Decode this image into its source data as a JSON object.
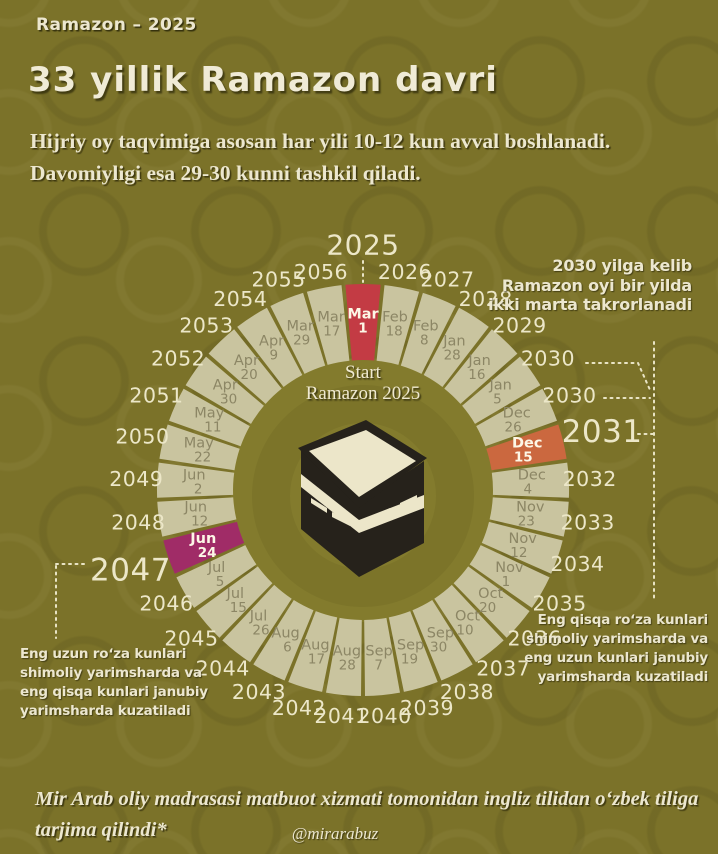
{
  "header": {
    "kicker": "Ramazon – 2025",
    "title": "33 yillik Ramazon davri",
    "subtitle_line1": "Hijriy oy taqvimiga asosan har yili 10-12 kun avval boshlanadi.",
    "subtitle_line2": "Davomiyligi esa 29-30 kunni tashkil qiladi."
  },
  "wheel": {
    "center_line1": "Start",
    "center_line2": "Ramazon 2025",
    "segments": [
      {
        "year": "2025",
        "month": "Mar",
        "day": "1",
        "highlight": "red",
        "emphasis": "top"
      },
      {
        "year": "2026",
        "month": "Feb",
        "day": "18"
      },
      {
        "year": "2027",
        "month": "Feb",
        "day": "8"
      },
      {
        "year": "2028",
        "month": "Jan",
        "day": "28"
      },
      {
        "year": "2029",
        "month": "Jan",
        "day": "16"
      },
      {
        "year": "2030",
        "month": "Jan",
        "day": "5"
      },
      {
        "year": "2030",
        "month": "Dec",
        "day": "26"
      },
      {
        "year": "2031",
        "month": "Dec",
        "day": "15",
        "highlight": "orange",
        "emphasis": "big"
      },
      {
        "year": "2032",
        "month": "Dec",
        "day": "4"
      },
      {
        "year": "2033",
        "month": "Nov",
        "day": "23"
      },
      {
        "year": "2034",
        "month": "Nov",
        "day": "12"
      },
      {
        "year": "2035",
        "month": "Nov",
        "day": "1"
      },
      {
        "year": "2036",
        "month": "Oct",
        "day": "20"
      },
      {
        "year": "2037",
        "month": "Oct",
        "day": "10"
      },
      {
        "year": "2038",
        "month": "Sep",
        "day": "30"
      },
      {
        "year": "2039",
        "month": "Sep",
        "day": "19"
      },
      {
        "year": "2040",
        "month": "Sep",
        "day": "7"
      },
      {
        "year": "2041",
        "month": "Aug",
        "day": "28"
      },
      {
        "year": "2042",
        "month": "Aug",
        "day": "17"
      },
      {
        "year": "2043",
        "month": "Aug",
        "day": "6"
      },
      {
        "year": "2044",
        "month": "Jul",
        "day": "26"
      },
      {
        "year": "2045",
        "month": "Jul",
        "day": "15"
      },
      {
        "year": "2046",
        "month": "Jul",
        "day": "5"
      },
      {
        "year": "2047",
        "month": "Jun",
        "day": "24",
        "highlight": "purple",
        "emphasis": "big"
      },
      {
        "year": "2048",
        "month": "Jun",
        "day": "12"
      },
      {
        "year": "2049",
        "month": "Jun",
        "day": "2"
      },
      {
        "year": "2050",
        "month": "May",
        "day": "22"
      },
      {
        "year": "2051",
        "month": "May",
        "day": "11"
      },
      {
        "year": "2052",
        "month": "Apr",
        "day": "30"
      },
      {
        "year": "2053",
        "month": "Apr",
        "day": "20"
      },
      {
        "year": "2054",
        "month": "Apr",
        "day": "9"
      },
      {
        "year": "2055",
        "month": "Mar",
        "day": "29"
      },
      {
        "year": "2056",
        "month": "Mar",
        "day": "17"
      }
    ]
  },
  "annotations": {
    "top_right": [
      "2030 yilga kelib",
      "Ramazon oyi bir yilda",
      "ikki marta takrorlanadi"
    ],
    "bottom_right": [
      "Eng qisqa roʻza kunlari",
      "shimoliy yarimsharda va",
      "eng uzun kunlari janubiy",
      "yarimsharda kuzatiladi"
    ],
    "bottom_left": [
      "Eng uzun roʻza kunlari",
      "shimoliy yarimsharda va",
      "eng qisqa kunlari janubiy",
      "yarimsharda kuzatiladi"
    ]
  },
  "footer": {
    "note_line1": "Mir Arab oliy madrasasi matbuot xizmati tomonidan ingliz tilidan oʻzbek tiliga",
    "note_line2": "tarjima qilindi*",
    "handle": "@mirarabuz"
  },
  "colors": {
    "background": "#7b7229",
    "ring": "#c9c49f",
    "inner_disc": "#837b2d",
    "highlight_red": "#c33b44",
    "highlight_orange": "#cb683f",
    "highlight_purple": "#a02c67",
    "year_text": "#ece7c8",
    "date_text": "#8c8665",
    "highlight_text": "#fdf7e6",
    "dotted": "#e9e4c5",
    "cream_text": "#ece7cf",
    "kaaba_black": "#26221b",
    "kaaba_cream": "#ece6c9"
  }
}
